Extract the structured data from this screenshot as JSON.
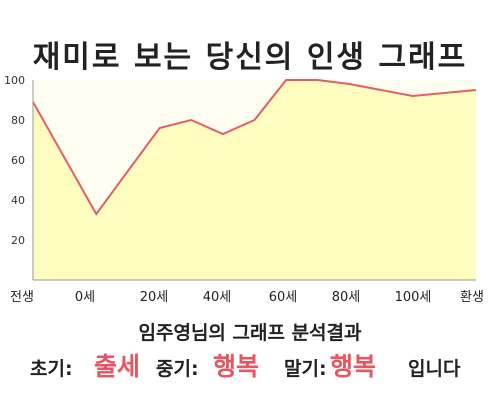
{
  "chart_data": {
    "type": "area",
    "title": "재미로 보는 당신의 인생 그래프",
    "x_ticks": [
      "전생",
      "0세",
      "20세",
      "40세",
      "60세",
      "80세",
      "100세",
      "환생"
    ],
    "y_ticks": [
      20,
      40,
      60,
      80,
      100
    ],
    "ylim": [
      0,
      100
    ],
    "grid": false,
    "fill_color": "#fffcc0",
    "line_color": "#e0606a",
    "background_color": "#fffef0",
    "series": [
      {
        "x": [
          -20,
          0,
          20,
          30,
          40,
          50,
          60,
          70,
          80,
          100,
          120
        ],
        "values": [
          89,
          33,
          76,
          80,
          73,
          80,
          100,
          100,
          98,
          92,
          95
        ]
      }
    ]
  },
  "result": {
    "title": "임주영님의 그래프 분석결과",
    "early_label": "초기:",
    "early_value": "출세",
    "mid_label": "중기:",
    "mid_value": "행복",
    "late_label": "말기:",
    "late_value": "행복",
    "suffix": "입니다"
  }
}
